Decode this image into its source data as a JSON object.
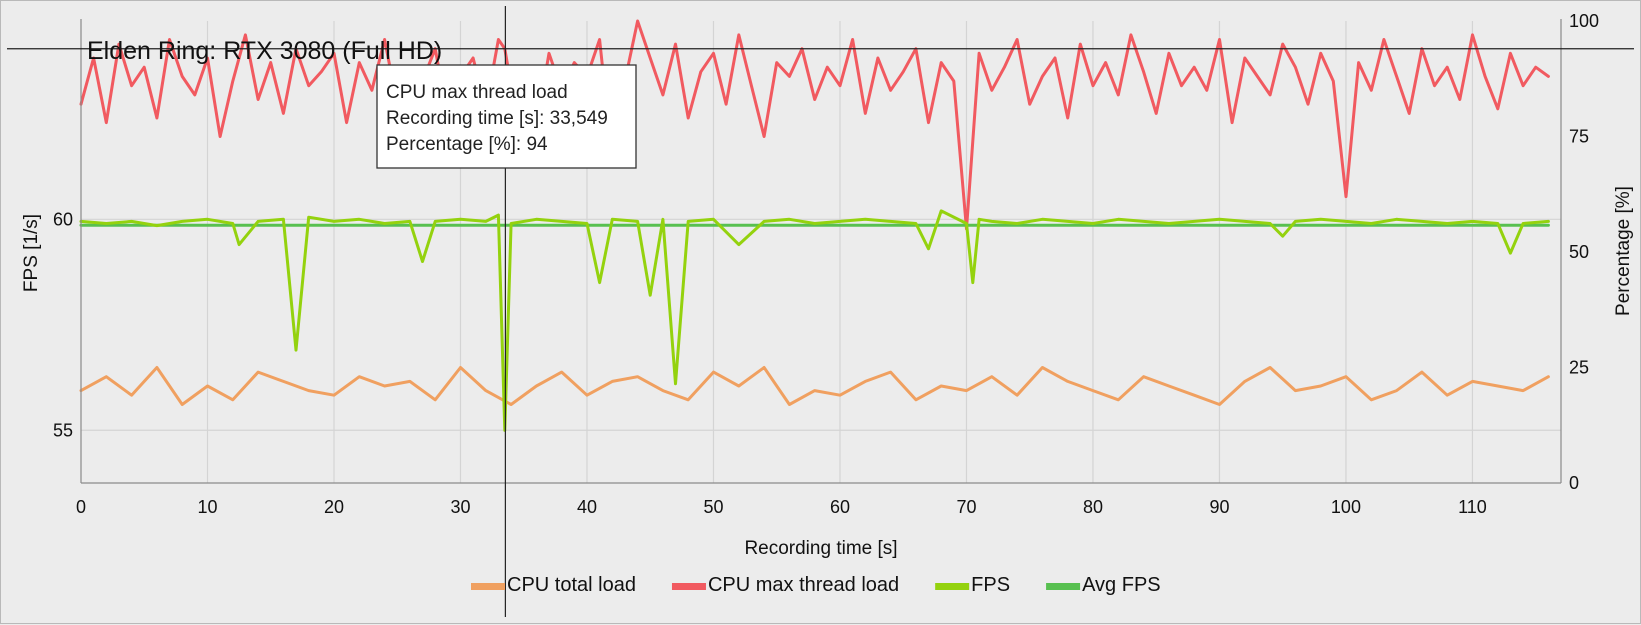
{
  "chart_data": {
    "type": "line",
    "title": "Elden Ring: RTX 3080 (Full HD)",
    "xlabel": "Recording time [s]",
    "ylabel_left": "FPS [1/s]",
    "ylabel_right": "Percentage [%]",
    "xlim": [
      0,
      117
    ],
    "ylim_left": [
      53.75,
      64.7
    ],
    "ylim_right": [
      0,
      100
    ],
    "x_ticks": [
      "0",
      "10",
      "20",
      "30",
      "40",
      "50",
      "60",
      "70",
      "80",
      "90",
      "100",
      "110"
    ],
    "y_left_ticks": [
      "55",
      "60"
    ],
    "y_right_ticks": [
      "0",
      "25",
      "50",
      "75",
      "100"
    ],
    "grid": true,
    "legend_position": "bottom",
    "colors": {
      "cpu_total": "#f0a060",
      "cpu_max": "#f15a60",
      "fps": "#94d20e",
      "avg_fps": "#58c050"
    },
    "series": [
      {
        "name": "CPU total load",
        "axis": "right",
        "color": "#f0a060",
        "x": [
          0,
          2,
          4,
          6,
          8,
          10,
          12,
          14,
          16,
          18,
          20,
          22,
          24,
          26,
          28,
          30,
          32,
          34,
          36,
          38,
          40,
          42,
          44,
          46,
          48,
          50,
          52,
          54,
          56,
          58,
          60,
          62,
          64,
          66,
          68,
          70,
          72,
          74,
          76,
          78,
          80,
          82,
          84,
          86,
          88,
          90,
          92,
          94,
          96,
          98,
          100,
          102,
          104,
          106,
          108,
          110,
          112,
          114,
          116
        ],
        "y": [
          20,
          23,
          19,
          25,
          17,
          21,
          18,
          24,
          22,
          20,
          19,
          23,
          21,
          22,
          18,
          25,
          20,
          17,
          21,
          24,
          19,
          22,
          23,
          20,
          18,
          24,
          21,
          25,
          17,
          20,
          19,
          22,
          24,
          18,
          21,
          20,
          23,
          19,
          25,
          22,
          20,
          18,
          23,
          21,
          19,
          17,
          22,
          25,
          20,
          21,
          23,
          18,
          20,
          24,
          19,
          22,
          21,
          20,
          23
        ]
      },
      {
        "name": "CPU max thread load",
        "axis": "right",
        "color": "#f15a60",
        "x": [
          0,
          1,
          2,
          3,
          4,
          5,
          6,
          7,
          8,
          9,
          10,
          11,
          12,
          13,
          14,
          15,
          16,
          17,
          18,
          19,
          20,
          21,
          22,
          23,
          24,
          25,
          26,
          27,
          28,
          29,
          30,
          31,
          32,
          33,
          33.5,
          34,
          35,
          36,
          37,
          38,
          39,
          40,
          41,
          42,
          43,
          44,
          45,
          46,
          47,
          48,
          49,
          50,
          51,
          52,
          53,
          54,
          55,
          56,
          57,
          58,
          59,
          60,
          61,
          62,
          63,
          64,
          65,
          66,
          67,
          68,
          69,
          70,
          71,
          72,
          73,
          74,
          75,
          76,
          77,
          78,
          79,
          80,
          81,
          82,
          83,
          84,
          85,
          86,
          87,
          88,
          89,
          90,
          91,
          92,
          93,
          94,
          95,
          96,
          97,
          98,
          99,
          100,
          101,
          102,
          103,
          104,
          105,
          106,
          107,
          108,
          109,
          110,
          111,
          112,
          113,
          114,
          115,
          116
        ],
        "y": [
          82,
          92,
          78,
          95,
          86,
          90,
          79,
          96,
          88,
          84,
          92,
          75,
          87,
          97,
          83,
          91,
          80,
          94,
          86,
          89,
          93,
          78,
          91,
          85,
          96,
          82,
          90,
          87,
          94,
          79,
          88,
          92,
          81,
          96,
          94,
          86,
          90,
          77,
          93,
          85,
          91,
          88,
          96,
          70,
          87,
          100,
          92,
          84,
          95,
          79,
          89,
          93,
          82,
          97,
          86,
          75,
          91,
          88,
          94,
          83,
          90,
          86,
          96,
          80,
          92,
          85,
          89,
          94,
          78,
          91,
          87,
          55,
          93,
          85,
          90,
          96,
          82,
          88,
          92,
          79,
          95,
          86,
          91,
          84,
          97,
          89,
          80,
          93,
          86,
          90,
          85,
          96,
          78,
          92,
          88,
          84,
          95,
          90,
          82,
          93,
          87,
          62,
          91,
          85,
          96,
          88,
          80,
          94,
          86,
          90,
          83,
          97,
          88,
          81,
          93,
          86,
          90,
          88
        ]
      },
      {
        "name": "FPS",
        "axis": "left",
        "color": "#94d20e",
        "x": [
          0,
          2,
          4,
          6,
          8,
          10,
          12,
          12.5,
          14,
          16,
          17,
          18,
          20,
          22,
          24,
          26,
          27,
          28,
          30,
          32,
          33,
          33.5,
          34,
          36,
          38,
          40,
          41,
          42,
          44,
          45,
          46,
          47,
          48,
          50,
          52,
          54,
          56,
          58,
          60,
          62,
          64,
          66,
          67,
          68,
          70,
          70.5,
          71,
          72,
          74,
          76,
          78,
          80,
          82,
          84,
          86,
          88,
          90,
          92,
          94,
          95,
          96,
          98,
          100,
          102,
          104,
          106,
          108,
          110,
          112,
          113,
          114,
          116
        ],
        "y": [
          59.95,
          59.9,
          59.95,
          59.85,
          59.95,
          60.0,
          59.9,
          59.4,
          59.95,
          60.0,
          56.9,
          60.05,
          59.95,
          60.0,
          59.9,
          59.95,
          59.0,
          59.95,
          60.0,
          59.95,
          60.1,
          55.0,
          59.9,
          60.0,
          59.95,
          59.9,
          58.5,
          60.0,
          59.95,
          58.2,
          60.0,
          56.1,
          59.95,
          60.0,
          59.4,
          59.95,
          60.0,
          59.9,
          59.95,
          60.0,
          59.95,
          59.9,
          59.3,
          60.2,
          59.9,
          58.5,
          60.0,
          59.95,
          59.9,
          60.0,
          59.95,
          59.9,
          60.0,
          59.95,
          59.9,
          59.95,
          60.0,
          59.95,
          59.9,
          59.6,
          59.95,
          60.0,
          59.95,
          59.9,
          60.0,
          59.95,
          59.9,
          59.95,
          59.9,
          59.2,
          59.9,
          59.95
        ]
      },
      {
        "name": "Avg FPS",
        "axis": "left",
        "color": "#58c050",
        "x": [
          0,
          116
        ],
        "y": [
          59.86,
          59.86
        ]
      }
    ]
  },
  "tooltip": {
    "series_name": "CPU max thread load",
    "x_line": "Recording time [s]: 33,549",
    "y_line": "Percentage [%]: 94",
    "x_value": 33.549,
    "y_value": 94
  },
  "crosshair": {
    "x_value": 33.549,
    "y_value": 94
  }
}
